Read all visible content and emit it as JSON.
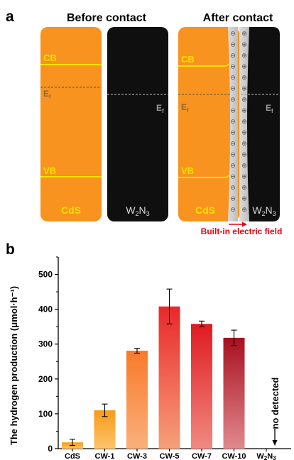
{
  "panel_a": {
    "panel_label": "a",
    "before_title": "Before contact",
    "after_title": "After contact",
    "cb": "CB",
    "vb": "VB",
    "ef": "E",
    "ef_sub": "f",
    "cds": "CdS",
    "w2n3_main": "W",
    "w2n3_sub1": "2",
    "w2n3_mid": "N",
    "w2n3_sub2": "3",
    "field_label": "Built-in electric field",
    "minus_sign": "⊖",
    "plus_sign": "⊕",
    "colors": {
      "cds": "#f7931e",
      "w2n3": "#0f0f0f",
      "band": "#ffe100",
      "field": "#e60012",
      "interface": "#c8c8c8"
    }
  },
  "panel_b": {
    "panel_label": "b",
    "annotation": "no detected"
  },
  "chart_data": {
    "type": "bar",
    "categories": [
      "CdS",
      "CW-1",
      "CW-3",
      "CW-5",
      "CW-7",
      "CW-10",
      "W2N3"
    ],
    "values": [
      18,
      110,
      281,
      408,
      358,
      318,
      0
    ],
    "errors": [
      9,
      18,
      7,
      50,
      8,
      22,
      0
    ],
    "ylabel": "The hydrogen production (μmol·h⁻¹)",
    "ylim": [
      0,
      550
    ],
    "yticks": [
      0,
      100,
      200,
      300,
      400,
      500
    ],
    "legend": "none",
    "grid": false
  }
}
